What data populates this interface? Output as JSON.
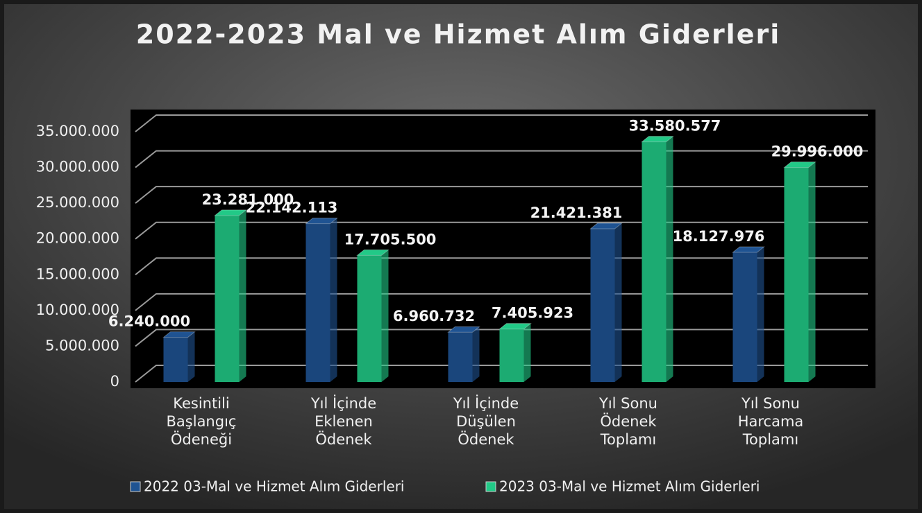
{
  "chart_data": {
    "type": "bar",
    "title": "2022-2023 Mal ve Hizmet Alım Giderleri",
    "categories": [
      [
        "Kesintili",
        "Başlangıç",
        "Ödeneği"
      ],
      [
        "Yıl İçinde",
        "Eklenen",
        "Ödenek"
      ],
      [
        "Yıl İçinde",
        "Düşülen",
        "Ödenek"
      ],
      [
        "Yıl Sonu",
        "Ödenek",
        "Toplamı"
      ],
      [
        "Yıl Sonu",
        "Harcama",
        "Toplamı"
      ]
    ],
    "series": [
      {
        "name": "2022 03-Mal ve Hizmet Alım Giderleri",
        "color": "#1f5392",
        "values": [
          6240000,
          22142113,
          6960732,
          21421381,
          18127976
        ],
        "value_labels": [
          "6.240.000",
          "22.142.113",
          "6.960.732",
          "21.421.381",
          "18.127.976"
        ]
      },
      {
        "name": "2023 03-Mal ve Hizmet Alım Giderleri",
        "color": "#22c987",
        "values": [
          23281000,
          17705500,
          7405923,
          33580577,
          29996000
        ],
        "value_labels": [
          "23.281.000",
          "17.705.500",
          "7.405.923",
          "33.580.577",
          "29.996.000"
        ]
      }
    ],
    "ylim": [
      0,
      35000000
    ],
    "yticks": [
      0,
      {
        "value": 5000000,
        "label": "5.000.000"
      },
      {
        "value": 10000000,
        "label": "10.000.000"
      },
      {
        "value": 15000000,
        "label": "15.000.000"
      },
      {
        "value": 20000000,
        "label": "20.000.000"
      },
      {
        "value": 25000000,
        "label": "25.000.000"
      },
      {
        "value": 30000000,
        "label": "30.000.000"
      },
      {
        "value": 35000000,
        "label": "35.000.000"
      }
    ],
    "grid": true,
    "legend": "bottom"
  }
}
